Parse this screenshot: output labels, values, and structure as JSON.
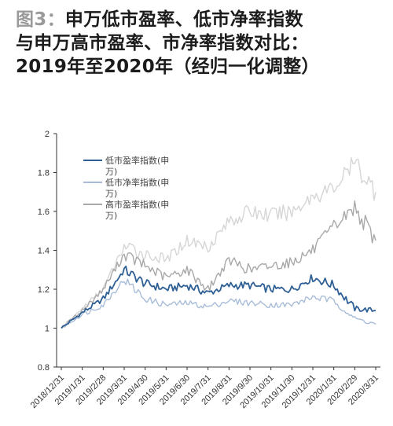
{
  "title": {
    "fig_tag": "图3：",
    "line1": "申万低市盈率、低市净率指数",
    "line2": "与申万高市盈率、市净率指数对比：",
    "line3": "2019年至2020年（经归一化调整）"
  },
  "colors": {
    "low_pe": "#2e5f95",
    "low_pb": "#a9bdd9",
    "high_pe": "#a8a8a8",
    "high_pb": "#d6d6d6",
    "axis": "#333333"
  },
  "chart_data": {
    "type": "line",
    "title": "",
    "xlabel": "",
    "ylabel": "",
    "ylim": [
      0.8,
      2.0
    ],
    "yticks": [
      0.8,
      1,
      1.2,
      1.4,
      1.6,
      1.8,
      2
    ],
    "ytick_labels": [
      "0.8",
      "1",
      "1.2",
      "1.4",
      "1.6",
      "1.8",
      "2"
    ],
    "x": [
      "2018/12/31",
      "2019/1/31",
      "2019/2/28",
      "2019/3/31",
      "2019/4/30",
      "2019/5/31",
      "2019/6/30",
      "2019/7/31",
      "2019/8/31",
      "2019/9/30",
      "2019/10/31",
      "2019/11/30",
      "2019/12/31",
      "2020/1/31",
      "2020/2/29",
      "2020/3/31"
    ],
    "legend_position": "upper-left",
    "legend": [
      {
        "label_lines": [
          "低市盈率指数(申",
          "万)"
        ],
        "color_key": "low_pe"
      },
      {
        "label_lines": [
          "低市净率指数(申",
          "万)"
        ],
        "color_key": "low_pb"
      },
      {
        "label_lines": [
          "高市盈率指数(申",
          "万)"
        ],
        "color_key": "high_pe"
      }
    ],
    "series": [
      {
        "name": "低市盈率指数(申万)",
        "color_key": "low_pe",
        "values": [
          1.0,
          1.08,
          1.15,
          1.3,
          1.23,
          1.2,
          1.22,
          1.18,
          1.22,
          1.22,
          1.2,
          1.2,
          1.26,
          1.22,
          1.1,
          1.09
        ]
      },
      {
        "name": "低市净率指数(申万)",
        "color_key": "low_pb",
        "values": [
          1.0,
          1.07,
          1.12,
          1.25,
          1.15,
          1.12,
          1.13,
          1.11,
          1.14,
          1.13,
          1.12,
          1.12,
          1.16,
          1.14,
          1.05,
          1.02
        ]
      },
      {
        "name": "高市盈率指数(申万)",
        "color_key": "high_pe",
        "values": [
          1.0,
          1.09,
          1.2,
          1.38,
          1.32,
          1.26,
          1.3,
          1.2,
          1.35,
          1.3,
          1.32,
          1.34,
          1.4,
          1.52,
          1.62,
          1.45
        ]
      },
      {
        "name": "",
        "color_key": "high_pb",
        "values": [
          1.0,
          1.1,
          1.2,
          1.42,
          1.38,
          1.35,
          1.45,
          1.42,
          1.55,
          1.6,
          1.58,
          1.6,
          1.68,
          1.72,
          1.85,
          1.7
        ]
      }
    ]
  }
}
